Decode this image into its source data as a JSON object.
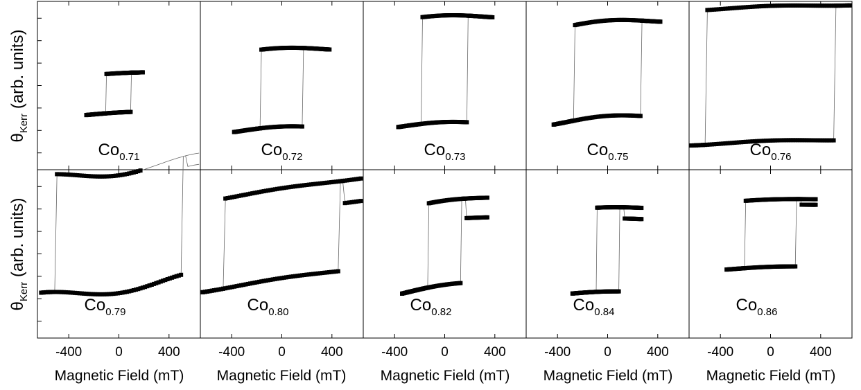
{
  "figure": {
    "y_axis_title_main": "θ",
    "y_axis_title_sub": "Kerr",
    "y_axis_title_rest": " (arb. units)",
    "x_axis_title": "Magnetic Field (mT)",
    "x_ticks": [
      -400,
      0,
      400
    ]
  },
  "chart_data": [
    {
      "type": "scatter",
      "row": 0,
      "col": 0,
      "label_main": "Co",
      "label_sub": "0.71",
      "xlim": [
        -650,
        650
      ],
      "ylim": [
        -1.5,
        1.5
      ],
      "hc": 100,
      "ms": 0.35,
      "offset": -0.15,
      "x_range": [
        -260,
        190
      ],
      "tilt": 0.08,
      "wave": 0.02,
      "jump": 0
    },
    {
      "type": "scatter",
      "row": 0,
      "col": 1,
      "label_main": "Co",
      "label_sub": "0.72",
      "xlim": [
        -650,
        650
      ],
      "ylim": [
        -1.5,
        1.5
      ],
      "hc": 170,
      "ms": 0.7,
      "offset": -0.08,
      "x_range": [
        -380,
        380
      ],
      "tilt": 0.06,
      "wave": 0.05,
      "jump": 0
    },
    {
      "type": "scatter",
      "row": 0,
      "col": 2,
      "label_main": "Co",
      "label_sub": "0.73",
      "xlim": [
        -650,
        650
      ],
      "ylim": [
        -1.5,
        1.5
      ],
      "hc": 180,
      "ms": 0.95,
      "offset": 0.25,
      "x_range": [
        -370,
        380
      ],
      "tilt": 0.05,
      "wave": 0.05,
      "jump": 0
    },
    {
      "type": "scatter",
      "row": 0,
      "col": 3,
      "label_main": "Co",
      "label_sub": "0.75",
      "xlim": [
        -650,
        650
      ],
      "ylim": [
        -1.5,
        1.5
      ],
      "hc": 270,
      "ms": 0.85,
      "offset": 0.25,
      "x_range": [
        -430,
        420
      ],
      "tilt": 0.1,
      "wave": 0.06,
      "jump": 0
    },
    {
      "type": "scatter",
      "row": 0,
      "col": 4,
      "label_main": "Co",
      "label_sub": "0.76",
      "xlim": [
        -650,
        650
      ],
      "ylim": [
        -1.5,
        1.5
      ],
      "hc": 510,
      "ms": 1.2,
      "offset": 0.2,
      "x_range": [
        -630,
        630
      ],
      "tilt": 0.05,
      "wave": 0.02,
      "jump": 0
    },
    {
      "type": "scatter",
      "row": 1,
      "col": 0,
      "label_main": "Co",
      "label_sub": "0.79",
      "xlim": [
        -650,
        650
      ],
      "ylim": [
        -1.5,
        1.5
      ],
      "hc": 500,
      "ms": 1.05,
      "offset": 0.45,
      "x_range": [
        -620,
        640
      ],
      "tilt": 0.2,
      "wave": -0.1,
      "jump": -0.2
    },
    {
      "type": "scatter",
      "row": 1,
      "col": 1,
      "label_main": "Co",
      "label_sub": "0.80",
      "xlim": [
        -650,
        650
      ],
      "ylim": [
        -1.5,
        1.5
      ],
      "hc": 460,
      "ms": 0.8,
      "offset": 0.35,
      "x_range": [
        -630,
        630
      ],
      "tilt": 0.22,
      "wave": 0.02,
      "jump": -0.4
    },
    {
      "type": "scatter",
      "row": 1,
      "col": 2,
      "label_main": "Co",
      "label_sub": "0.82",
      "xlim": [
        -650,
        650
      ],
      "ylim": [
        -1.5,
        1.5
      ],
      "hc": 130,
      "ms": 0.75,
      "offset": 0.15,
      "x_range": [
        -340,
        340
      ],
      "tilt": 0.2,
      "wave": 0.05,
      "jump": -0.35
    },
    {
      "type": "scatter",
      "row": 1,
      "col": 3,
      "label_main": "Co",
      "label_sub": "0.84",
      "xlim": [
        -650,
        650
      ],
      "ylim": [
        -1.5,
        1.5
      ],
      "hc": 90,
      "ms": 0.75,
      "offset": 0.05,
      "x_range": [
        -280,
        270
      ],
      "tilt": 0.03,
      "wave": 0.03,
      "jump": -0.2
    },
    {
      "type": "scatter",
      "row": 1,
      "col": 4,
      "label_main": "Co",
      "label_sub": "0.86",
      "xlim": [
        -650,
        650
      ],
      "ylim": [
        -1.5,
        1.5
      ],
      "hc": 200,
      "ms": 0.6,
      "offset": 0.35,
      "x_range": [
        -350,
        360
      ],
      "tilt": 0.05,
      "wave": 0.02,
      "jump": -0.1
    }
  ]
}
